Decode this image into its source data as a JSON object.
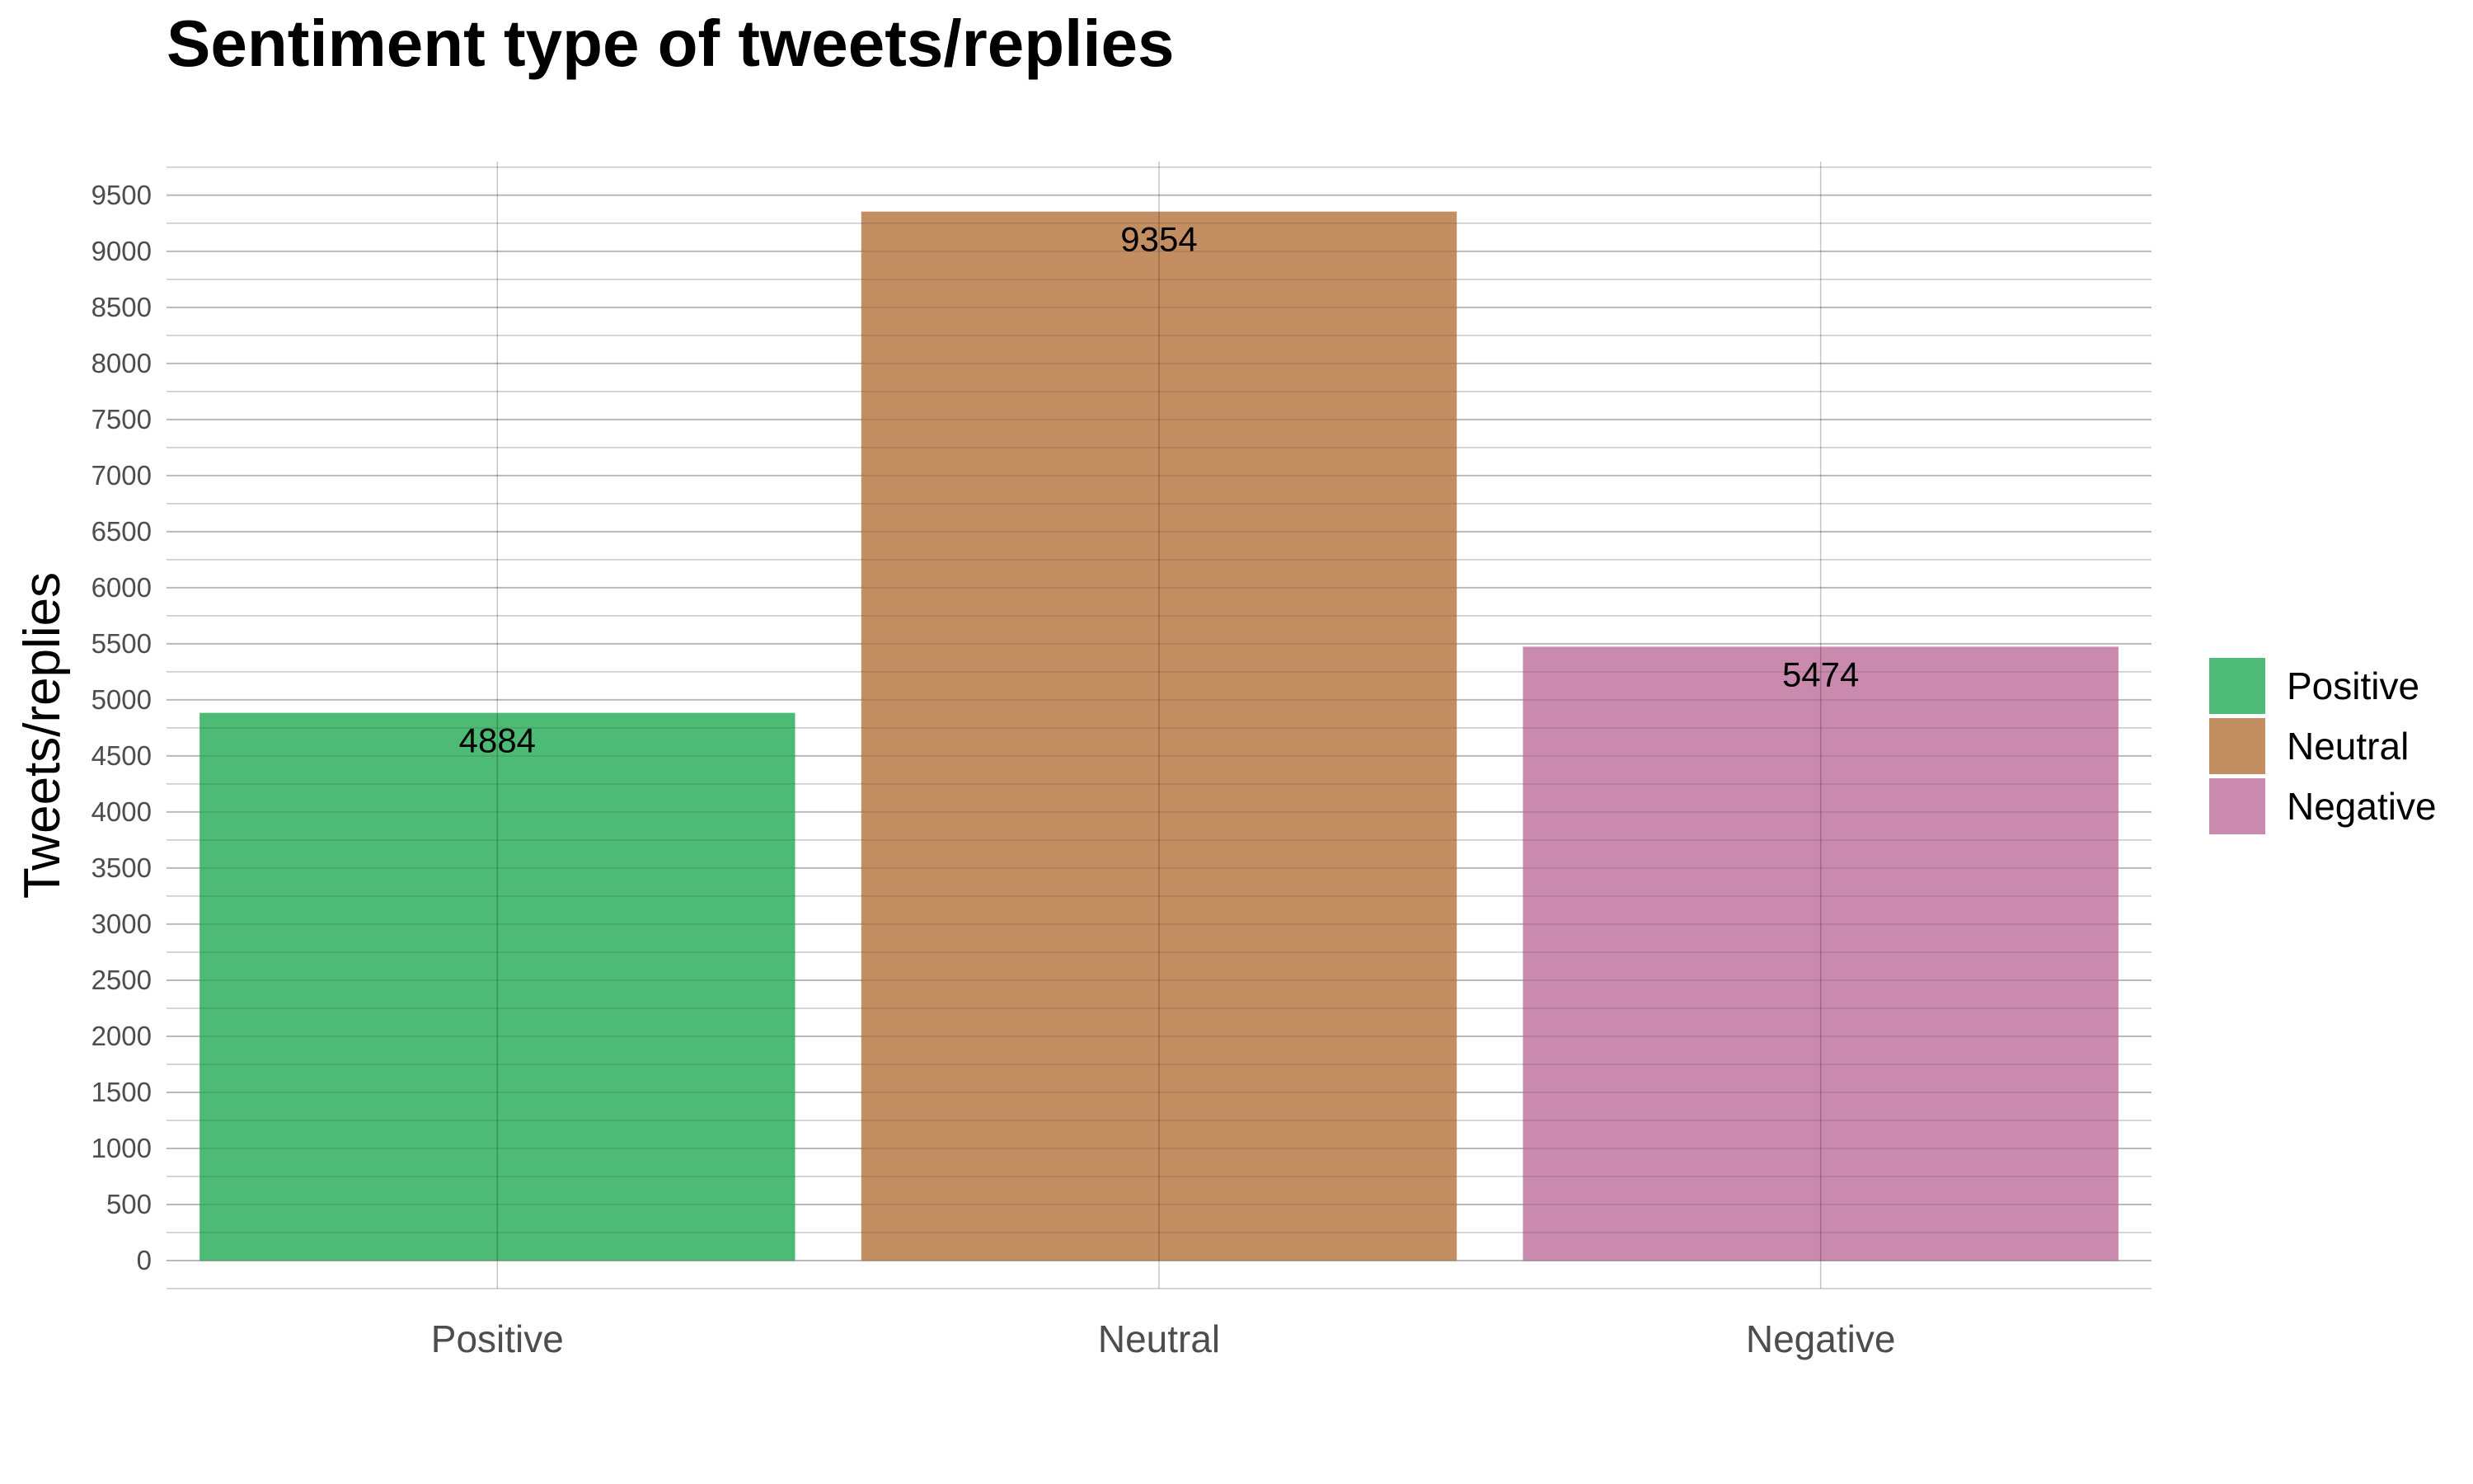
{
  "chart_data": {
    "type": "bar",
    "title": "Sentiment type of tweets/replies",
    "xlabel": "",
    "ylabel": "Tweets/replies",
    "categories": [
      "Positive",
      "Neutral",
      "Negative"
    ],
    "values": [
      4884,
      9354,
      5474
    ],
    "data_labels": [
      "4884",
      "9354",
      "5474"
    ],
    "colors": [
      "#4dbb75",
      "#c48e63",
      "#c98aae"
    ],
    "ylim": [
      -250,
      9800
    ],
    "yticks": [
      0,
      500,
      1000,
      1500,
      2000,
      2500,
      3000,
      3500,
      4000,
      4500,
      5000,
      5500,
      6000,
      6500,
      7000,
      7500,
      8000,
      8500,
      9000,
      9500
    ],
    "grid": true,
    "legend": {
      "position": "right",
      "entries": [
        "Positive",
        "Neutral",
        "Negative"
      ]
    }
  }
}
